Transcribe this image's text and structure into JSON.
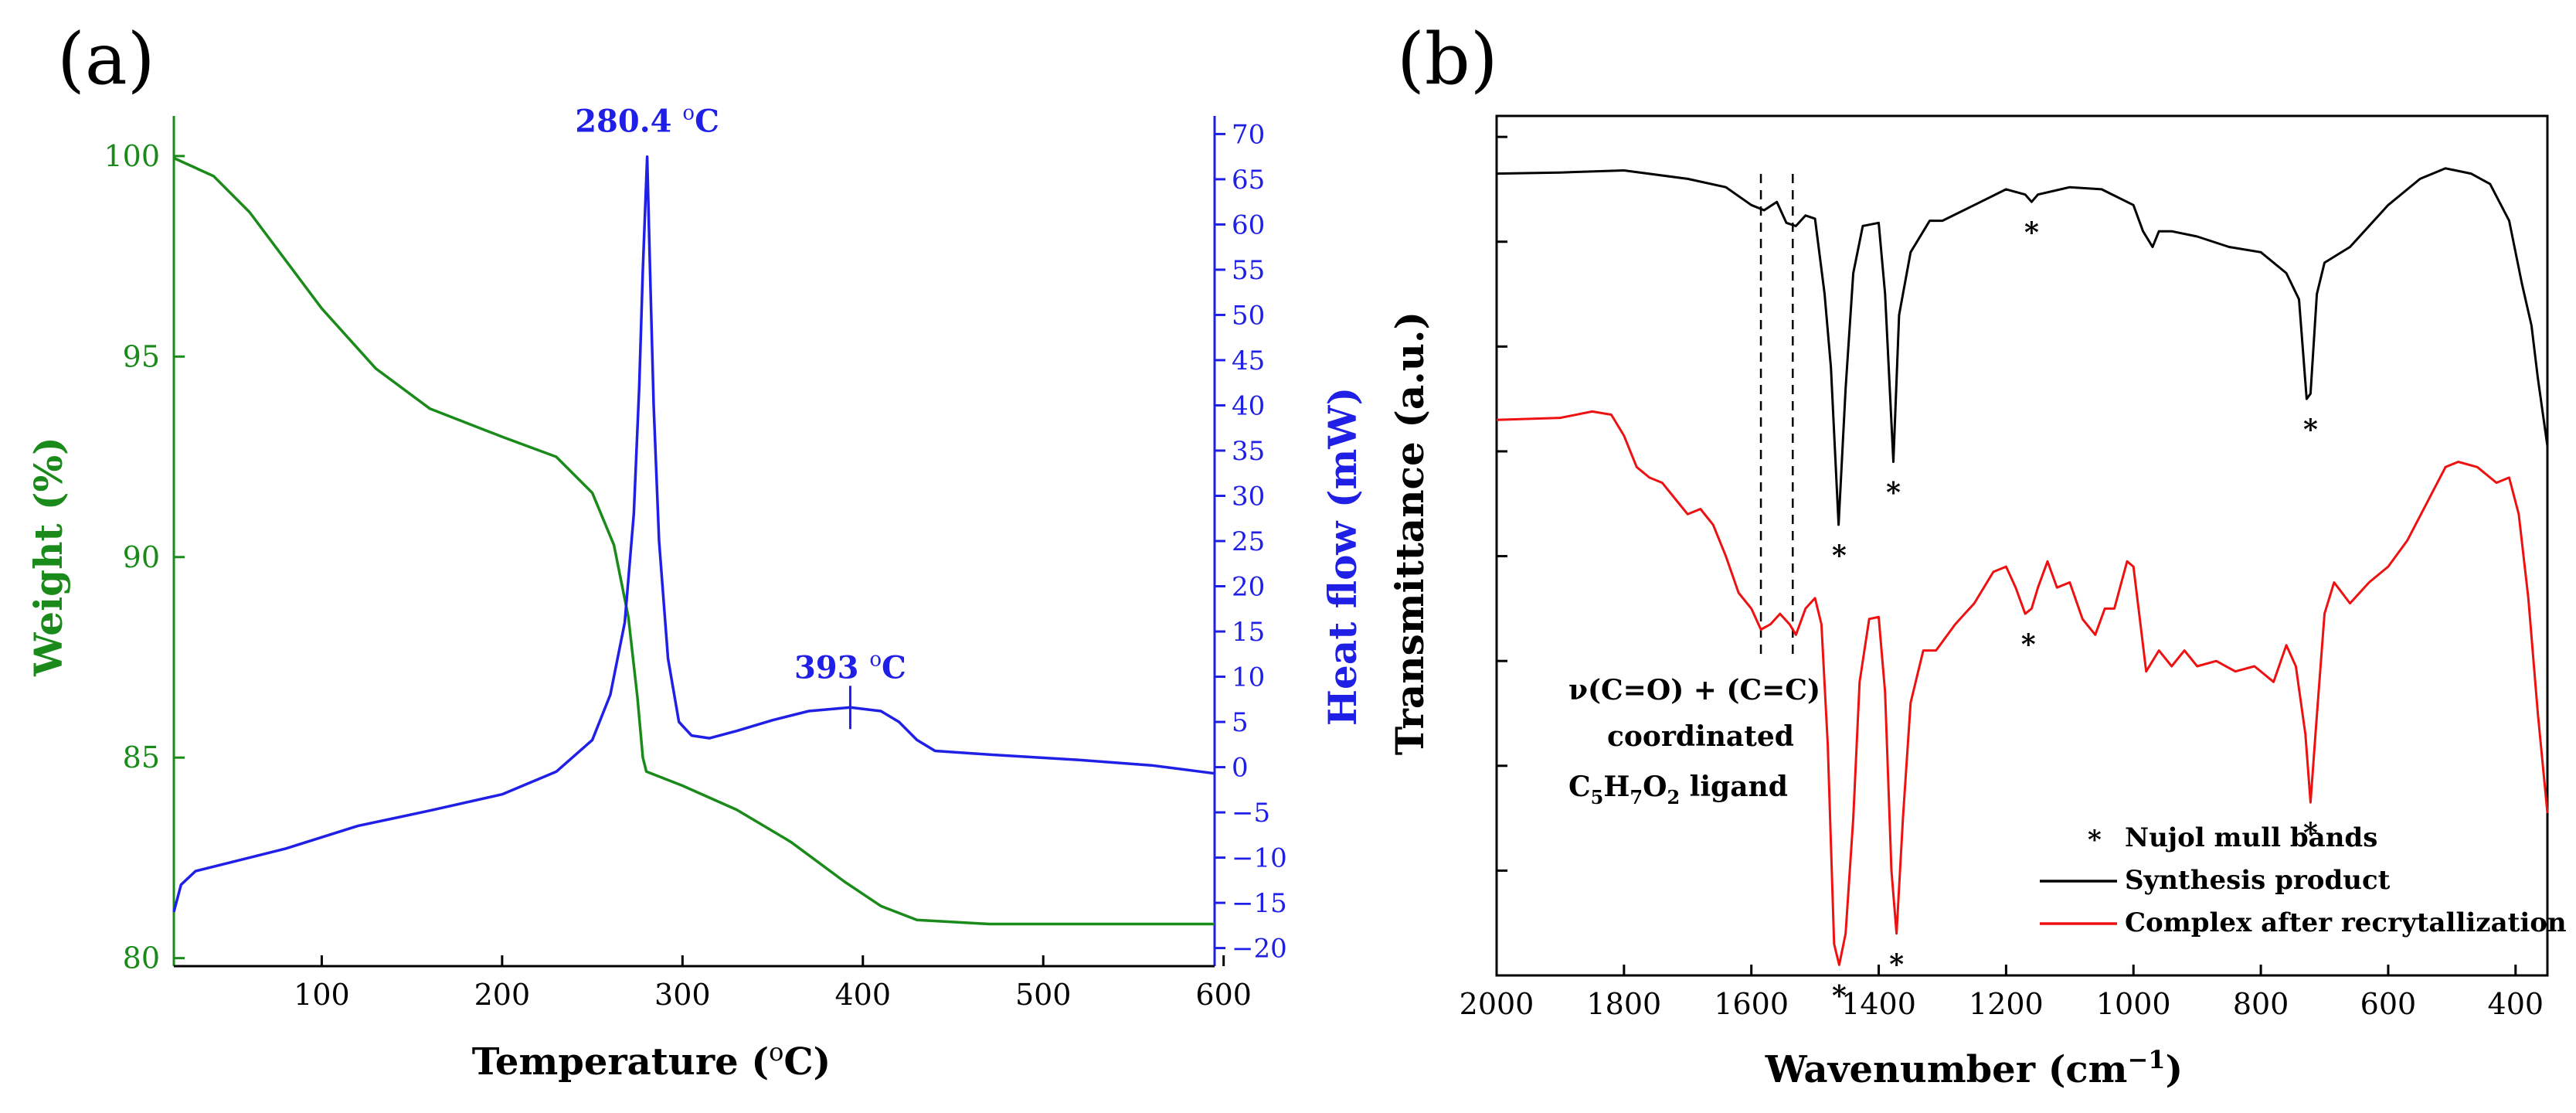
{
  "colors": {
    "green": "#1a8a1a",
    "blue": "#1f1fe6",
    "black": "#000000",
    "red": "#ee1111"
  },
  "panel_a_label": "(a)",
  "panel_b_label": "(b)",
  "chart_data": [
    {
      "type": "line",
      "panel": "a",
      "xlabel": "Temperature (°C)",
      "ylabel": "Weight (%)",
      "y2label": "Heat flow (mW)",
      "xlim": [
        18,
        595
      ],
      "ylim": [
        79.8,
        101.0
      ],
      "y2lim": [
        -22,
        72
      ],
      "xticks": [
        100,
        200,
        300,
        400,
        500,
        600
      ],
      "yticks": [
        80,
        85,
        90,
        95,
        100
      ],
      "y2ticks": [
        -20,
        -15,
        -10,
        -5,
        0,
        5,
        10,
        15,
        20,
        25,
        30,
        35,
        40,
        45,
        50,
        55,
        60,
        65,
        70
      ],
      "series": [
        {
          "name": "Weight",
          "axis": "left",
          "color": "green",
          "points": [
            [
              18,
              99.95
            ],
            [
              40,
              99.5
            ],
            [
              60,
              98.6
            ],
            [
              80,
              97.4
            ],
            [
              100,
              96.2
            ],
            [
              130,
              94.7
            ],
            [
              160,
              93.7
            ],
            [
              200,
              93.0
            ],
            [
              230,
              92.5
            ],
            [
              250,
              91.6
            ],
            [
              262,
              90.3
            ],
            [
              270,
              88.5
            ],
            [
              275,
              86.5
            ],
            [
              278,
              85.0
            ],
            [
              280,
              84.65
            ],
            [
              300,
              84.3
            ],
            [
              330,
              83.7
            ],
            [
              360,
              82.9
            ],
            [
              390,
              81.9
            ],
            [
              410,
              81.3
            ],
            [
              430,
              80.95
            ],
            [
              470,
              80.85
            ],
            [
              595,
              80.85
            ]
          ]
        },
        {
          "name": "Heat flow",
          "axis": "right",
          "color": "blue",
          "points": [
            [
              18,
              -16
            ],
            [
              22,
              -13
            ],
            [
              30,
              -11.5
            ],
            [
              50,
              -10.5
            ],
            [
              80,
              -9
            ],
            [
              120,
              -6.5
            ],
            [
              160,
              -4.8
            ],
            [
              200,
              -3
            ],
            [
              230,
              -0.5
            ],
            [
              250,
              3
            ],
            [
              260,
              8
            ],
            [
              268,
              16
            ],
            [
              273,
              28
            ],
            [
              276,
              42
            ],
            [
              278,
              55
            ],
            [
              280.4,
              67.5
            ],
            [
              282,
              55
            ],
            [
              284,
              40
            ],
            [
              287,
              25
            ],
            [
              292,
              12
            ],
            [
              298,
              5
            ],
            [
              305,
              3.5
            ],
            [
              315,
              3.2
            ],
            [
              330,
              4
            ],
            [
              350,
              5.2
            ],
            [
              370,
              6.2
            ],
            [
              393,
              6.6
            ],
            [
              410,
              6.2
            ],
            [
              420,
              5.0
            ],
            [
              430,
              3.0
            ],
            [
              440,
              1.8
            ],
            [
              470,
              1.4
            ],
            [
              520,
              0.8
            ],
            [
              560,
              0.2
            ],
            [
              595,
              -0.7
            ]
          ]
        }
      ],
      "annotations": [
        {
          "label": "280.4 °C",
          "x": 280.4,
          "y2": 67.5
        },
        {
          "label": "393 °C",
          "x": 393,
          "y2": 6.6
        }
      ]
    },
    {
      "type": "line",
      "panel": "b",
      "xlabel": "Wavenumber (cm⁻¹)",
      "ylabel": "Transmittance (a.u.)",
      "xlim": [
        2000,
        350
      ],
      "ylim": [
        0,
        8.2
      ],
      "xticks": [
        2000,
        1800,
        1600,
        1400,
        1200,
        1000,
        800,
        600,
        400
      ],
      "y_minor_ticks": [
        0,
        1,
        2,
        3,
        4,
        5,
        6,
        7,
        8
      ],
      "series": [
        {
          "name": "Synthesis product",
          "color": "black",
          "points": [
            [
              2000,
              7.65
            ],
            [
              1900,
              7.66
            ],
            [
              1800,
              7.68
            ],
            [
              1700,
              7.6
            ],
            [
              1640,
              7.52
            ],
            [
              1600,
              7.35
            ],
            [
              1580,
              7.3
            ],
            [
              1560,
              7.38
            ],
            [
              1545,
              7.18
            ],
            [
              1530,
              7.15
            ],
            [
              1515,
              7.25
            ],
            [
              1500,
              7.22
            ],
            [
              1485,
              6.5
            ],
            [
              1475,
              5.8
            ],
            [
              1463,
              4.3
            ],
            [
              1452,
              5.6
            ],
            [
              1440,
              6.7
            ],
            [
              1425,
              7.15
            ],
            [
              1400,
              7.18
            ],
            [
              1390,
              6.5
            ],
            [
              1377,
              4.9
            ],
            [
              1368,
              6.3
            ],
            [
              1350,
              6.9
            ],
            [
              1320,
              7.2
            ],
            [
              1300,
              7.2
            ],
            [
              1250,
              7.35
            ],
            [
              1200,
              7.5
            ],
            [
              1170,
              7.45
            ],
            [
              1160,
              7.38
            ],
            [
              1150,
              7.45
            ],
            [
              1100,
              7.52
            ],
            [
              1050,
              7.5
            ],
            [
              1000,
              7.35
            ],
            [
              985,
              7.1
            ],
            [
              970,
              6.95
            ],
            [
              960,
              7.1
            ],
            [
              940,
              7.1
            ],
            [
              900,
              7.05
            ],
            [
              850,
              6.95
            ],
            [
              800,
              6.9
            ],
            [
              760,
              6.7
            ],
            [
              740,
              6.45
            ],
            [
              728,
              5.5
            ],
            [
              722,
              5.55
            ],
            [
              712,
              6.5
            ],
            [
              700,
              6.8
            ],
            [
              660,
              6.95
            ],
            [
              600,
              7.35
            ],
            [
              550,
              7.6
            ],
            [
              510,
              7.7
            ],
            [
              470,
              7.65
            ],
            [
              440,
              7.55
            ],
            [
              410,
              7.2
            ],
            [
              390,
              6.6
            ],
            [
              375,
              6.2
            ],
            [
              365,
              5.7
            ],
            [
              350,
              5.05
            ]
          ]
        },
        {
          "name": "Complex after recrytallization",
          "color": "red",
          "points": [
            [
              2000,
              5.3
            ],
            [
              1900,
              5.32
            ],
            [
              1850,
              5.38
            ],
            [
              1820,
              5.35
            ],
            [
              1800,
              5.15
            ],
            [
              1780,
              4.85
            ],
            [
              1760,
              4.75
            ],
            [
              1740,
              4.7
            ],
            [
              1720,
              4.55
            ],
            [
              1700,
              4.4
            ],
            [
              1680,
              4.45
            ],
            [
              1660,
              4.3
            ],
            [
              1640,
              4.0
            ],
            [
              1620,
              3.65
            ],
            [
              1600,
              3.5
            ],
            [
              1585,
              3.3
            ],
            [
              1570,
              3.35
            ],
            [
              1555,
              3.45
            ],
            [
              1540,
              3.35
            ],
            [
              1530,
              3.25
            ],
            [
              1515,
              3.5
            ],
            [
              1500,
              3.6
            ],
            [
              1490,
              3.35
            ],
            [
              1480,
              2.2
            ],
            [
              1470,
              0.3
            ],
            [
              1462,
              0.1
            ],
            [
              1452,
              0.4
            ],
            [
              1440,
              1.5
            ],
            [
              1430,
              2.8
            ],
            [
              1415,
              3.4
            ],
            [
              1400,
              3.42
            ],
            [
              1390,
              2.7
            ],
            [
              1380,
              1.0
            ],
            [
              1372,
              0.4
            ],
            [
              1362,
              1.5
            ],
            [
              1350,
              2.6
            ],
            [
              1330,
              3.1
            ],
            [
              1310,
              3.1
            ],
            [
              1280,
              3.35
            ],
            [
              1250,
              3.55
            ],
            [
              1220,
              3.85
            ],
            [
              1200,
              3.9
            ],
            [
              1185,
              3.7
            ],
            [
              1170,
              3.45
            ],
            [
              1160,
              3.5
            ],
            [
              1150,
              3.7
            ],
            [
              1135,
              3.95
            ],
            [
              1120,
              3.7
            ],
            [
              1100,
              3.75
            ],
            [
              1080,
              3.4
            ],
            [
              1060,
              3.25
            ],
            [
              1045,
              3.5
            ],
            [
              1030,
              3.5
            ],
            [
              1010,
              3.95
            ],
            [
              1000,
              3.9
            ],
            [
              990,
              3.4
            ],
            [
              980,
              2.9
            ],
            [
              960,
              3.1
            ],
            [
              940,
              2.95
            ],
            [
              920,
              3.1
            ],
            [
              900,
              2.95
            ],
            [
              870,
              3.0
            ],
            [
              840,
              2.9
            ],
            [
              810,
              2.95
            ],
            [
              780,
              2.8
            ],
            [
              760,
              3.15
            ],
            [
              745,
              2.95
            ],
            [
              730,
              2.3
            ],
            [
              722,
              1.65
            ],
            [
              713,
              2.4
            ],
            [
              700,
              3.45
            ],
            [
              685,
              3.75
            ],
            [
              660,
              3.55
            ],
            [
              630,
              3.75
            ],
            [
              600,
              3.9
            ],
            [
              570,
              4.15
            ],
            [
              540,
              4.5
            ],
            [
              510,
              4.85
            ],
            [
              490,
              4.9
            ],
            [
              460,
              4.85
            ],
            [
              430,
              4.7
            ],
            [
              410,
              4.75
            ],
            [
              395,
              4.4
            ],
            [
              380,
              3.6
            ],
            [
              365,
              2.5
            ],
            [
              350,
              1.55
            ]
          ]
        }
      ],
      "legend": {
        "placement": "bottom-right",
        "entries": [
          {
            "marker": "*",
            "label": "Nujol mull bands"
          },
          {
            "line": "black",
            "label": "Synthesis product"
          },
          {
            "line": "red",
            "label": "Complex after recrytallization"
          }
        ]
      },
      "dashed_lines_x": [
        1585,
        1535
      ],
      "annotation_text": {
        "line1": "ν(C=O) + (C=C)",
        "line2": "coordinated",
        "ligand_prefix": "C",
        "ligand_s1": "5",
        "ligand_h": "H",
        "ligand_s2": "7",
        "ligand_o": "O",
        "ligand_s3": "2",
        "ligand_suffix": " ligand"
      },
      "nujol_markers": [
        {
          "x": 1462,
          "y": 4.3,
          "series": "black",
          "label": "*"
        },
        {
          "x": 1377,
          "y": 4.9,
          "series": "black",
          "label": "*"
        },
        {
          "x": 1160,
          "y": 7.38,
          "series": "black",
          "label": "*"
        },
        {
          "x": 722,
          "y": 5.5,
          "series": "black",
          "label": "*"
        },
        {
          "x": 1462,
          "y": 0.1,
          "series": "red",
          "label": "*"
        },
        {
          "x": 1372,
          "y": 0.4,
          "series": "red",
          "label": "*"
        },
        {
          "x": 1165,
          "y": 3.45,
          "series": "red",
          "label": "*"
        },
        {
          "x": 722,
          "y": 1.65,
          "series": "red",
          "label": "*"
        }
      ]
    }
  ]
}
